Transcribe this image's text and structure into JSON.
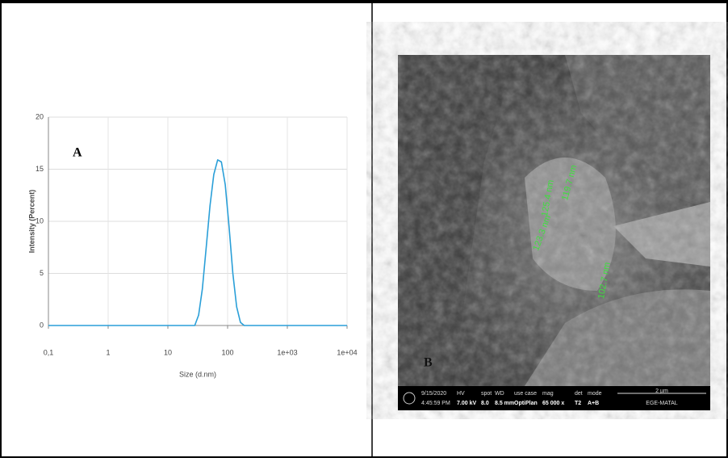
{
  "chart_data": {
    "type": "line",
    "panel_label": "A",
    "xlabel": "Size (d.nm)",
    "ylabel": "Intensity (Percent)",
    "xscale": "log",
    "xlim": [
      0.1,
      10000
    ],
    "ylim": [
      0,
      20
    ],
    "xticks": [
      {
        "value": 0.1,
        "label": "0,1"
      },
      1,
      10,
      100,
      {
        "value": 1000,
        "label": "1e+03"
      },
      {
        "value": 10000,
        "label": "1e+04"
      }
    ],
    "yticks": [
      0,
      5,
      10,
      15,
      20
    ],
    "grid": true,
    "color": "#2a9fd8",
    "x": [
      0.1,
      1,
      10,
      28.2,
      32.7,
      37.8,
      43.8,
      50.7,
      58.8,
      68.1,
      78.8,
      91.3,
      105.7,
      122.4,
      141.8,
      164.2,
      190.1,
      1000,
      10000
    ],
    "values": [
      0,
      0,
      0,
      0,
      1,
      3.5,
      7.5,
      11.5,
      14.5,
      15.9,
      15.7,
      13.5,
      9.5,
      5,
      1.8,
      0.3,
      0,
      0,
      0
    ]
  },
  "panel_b": {
    "label": "B",
    "measurements": [
      "125.4 nm",
      "119.7 nm",
      "123.3 nm",
      "102.7 nm"
    ],
    "info_bar": {
      "date": "9/15/2020",
      "time": "4:45:59 PM",
      "hv_label": "HV",
      "hv": "7.00 kV",
      "spot_label": "spot",
      "spot": "8.0",
      "wd_label": "WD",
      "wd": "8.5 mm",
      "use_case_label": "use case",
      "use_case": "OptiPlan",
      "mag_label": "mag",
      "mag": "65 000 x",
      "det_label": "det",
      "det": "T2",
      "mode_label": "mode",
      "mode": "A+B",
      "scale": "2 µm",
      "lab": "EGE-MATAL"
    }
  }
}
